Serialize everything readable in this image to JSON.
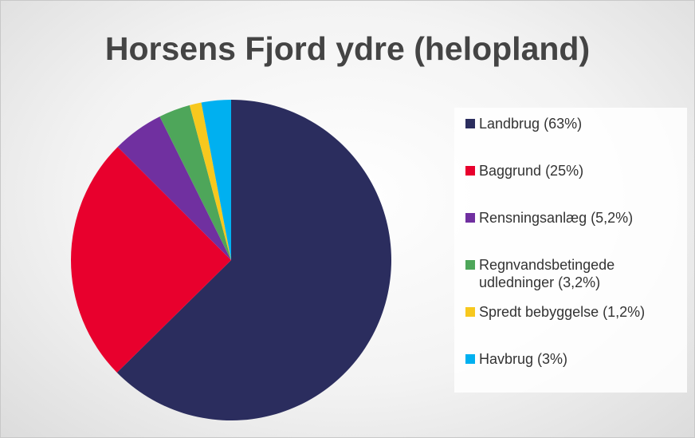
{
  "chart_data": {
    "type": "pie",
    "title": "Horsens Fjord ydre (helopland)",
    "categories": [
      "Landbrug (63%)",
      "Baggrund (25%)",
      "Rensningsanlæg (5,2%)",
      "Regnvandsbetingede udledninger (3,2%)",
      "Spredt bebyggelse (1,2%)",
      "Havbrug (3%)"
    ],
    "values": [
      63,
      25,
      5.2,
      3.2,
      1.2,
      3
    ],
    "colors": [
      "#2b2d5e",
      "#e8002d",
      "#7030a0",
      "#4ea65a",
      "#f7c81e",
      "#00b0f0"
    ]
  }
}
